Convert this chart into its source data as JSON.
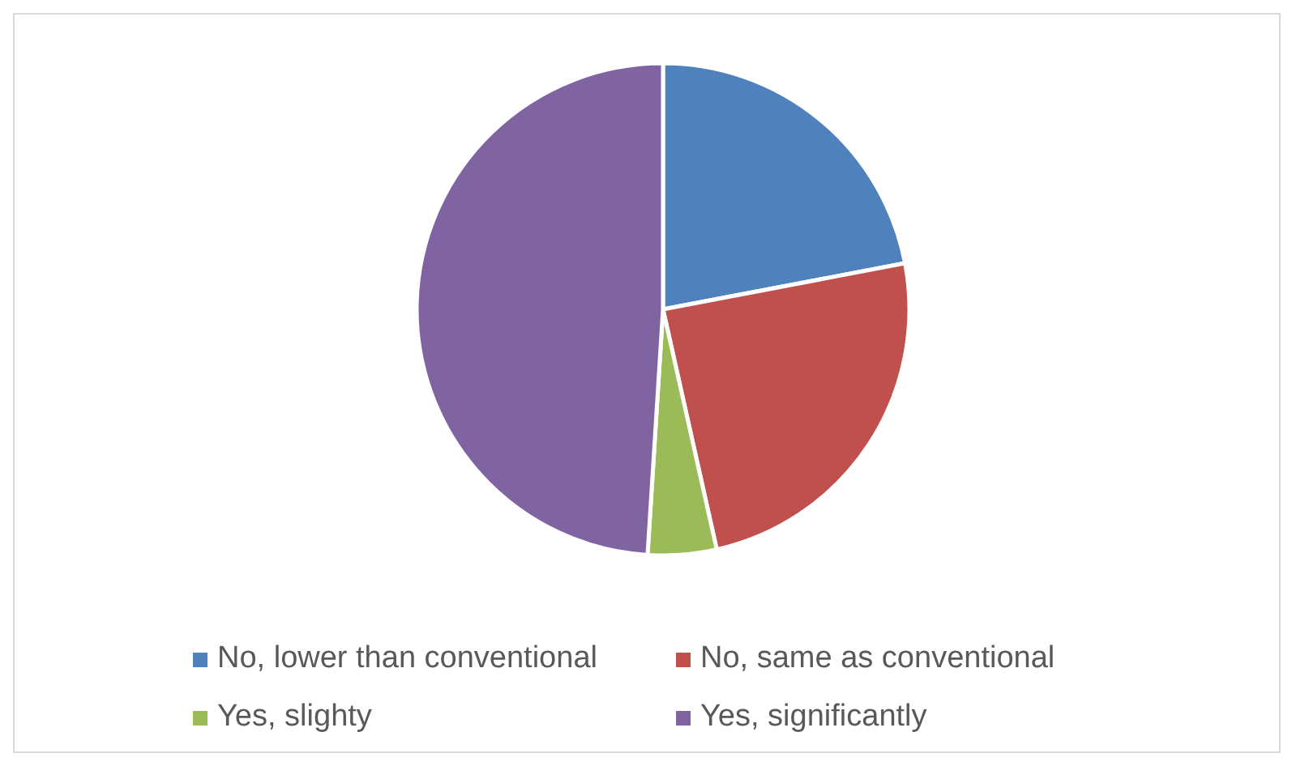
{
  "chart_data": {
    "type": "pie",
    "categories": [
      "No, lower than conventional",
      "No, same as conventional",
      "Yes, slighty",
      "Yes, significantly"
    ],
    "values": [
      22,
      24.5,
      4.5,
      49
    ],
    "colors": [
      "#4f81bd",
      "#c0504d",
      "#9bbb59",
      "#8064a2"
    ],
    "legend": "bottom"
  }
}
